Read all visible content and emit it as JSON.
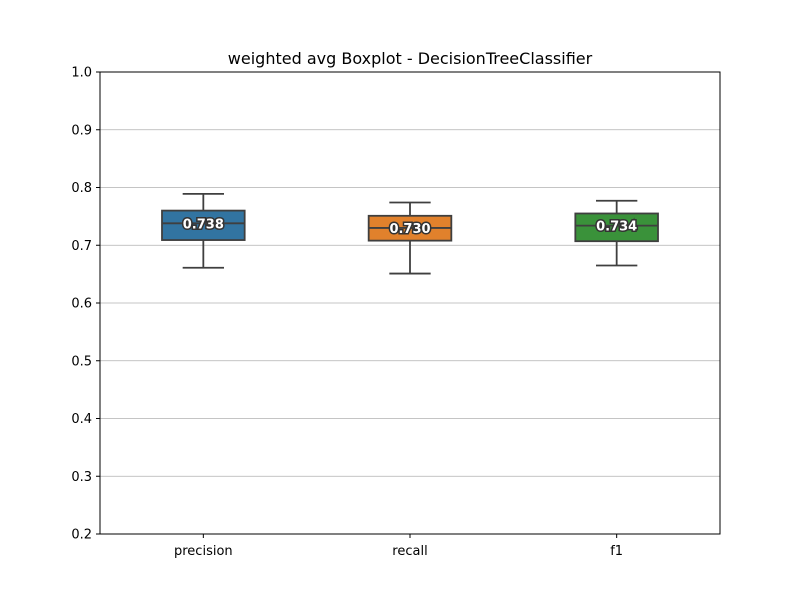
{
  "chart_data": {
    "type": "boxplot",
    "title": "weighted avg Boxplot - DecisionTreeClassifier",
    "xlabel": "",
    "ylabel": "",
    "ylim": [
      0.2,
      1.0
    ],
    "yticks": [
      "0.2",
      "0.3",
      "0.4",
      "0.5",
      "0.6",
      "0.7",
      "0.8",
      "0.9",
      "1.0"
    ],
    "grid": "horizontal",
    "categories": [
      "precision",
      "recall",
      "f1"
    ],
    "boxes": [
      {
        "category": "precision",
        "whisker_low": 0.661,
        "q1": 0.709,
        "median": 0.738,
        "q3": 0.76,
        "whisker_high": 0.789,
        "label": "0.738",
        "color": "#3274a1"
      },
      {
        "category": "recall",
        "whisker_low": 0.651,
        "q1": 0.708,
        "median": 0.73,
        "q3": 0.751,
        "whisker_high": 0.774,
        "label": "0.730",
        "color": "#e1812c"
      },
      {
        "category": "f1",
        "whisker_low": 0.665,
        "q1": 0.707,
        "median": 0.734,
        "q3": 0.755,
        "whisker_high": 0.777,
        "label": "0.734",
        "color": "#3a923a"
      }
    ]
  }
}
